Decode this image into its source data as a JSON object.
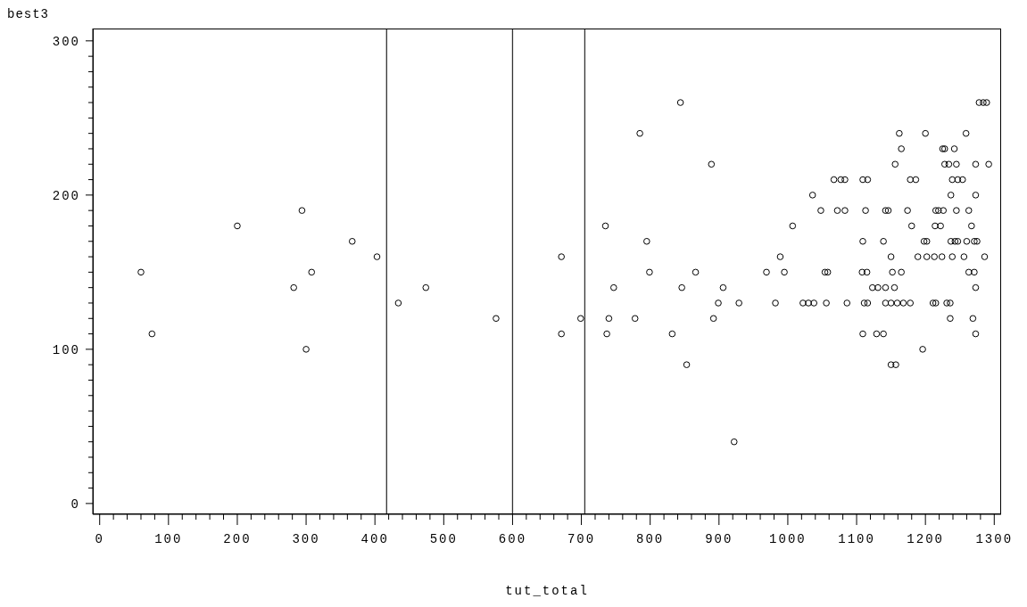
{
  "chart_data": {
    "type": "scatter",
    "xlabel": "tut_total",
    "ylabel": "best3",
    "x": [
      60,
      76,
      200,
      294,
      367,
      403,
      308,
      282,
      300,
      434,
      474,
      576,
      671,
      671,
      699,
      735,
      740,
      737,
      747,
      778,
      785,
      795,
      799,
      832,
      844,
      846,
      853,
      866,
      889,
      892,
      899,
      906,
      922,
      929,
      969,
      982,
      989,
      995,
      1007,
      1022,
      1030,
      1038,
      1036,
      1048,
      1054,
      1058,
      1056,
      1067,
      1077,
      1083,
      1109,
      1116,
      1178,
      1186,
      1239,
      1247,
      1254,
      1072,
      1083,
      1113,
      1142,
      1146,
      1174,
      1215,
      1219,
      1226,
      1245,
      1263,
      1086,
      1111,
      1116,
      1142,
      1150,
      1159,
      1168,
      1178,
      1211,
      1215,
      1231,
      1236,
      1278,
      1284,
      1289,
      1162,
      1200,
      1259,
      1165,
      1225,
      1228,
      1242,
      1156,
      1228,
      1234,
      1245,
      1273,
      1292,
      1237,
      1273,
      1180,
      1214,
      1222,
      1267,
      1109,
      1139,
      1198,
      1202,
      1237,
      1243,
      1247,
      1260,
      1271,
      1275,
      1150,
      1189,
      1202,
      1213,
      1224,
      1239,
      1256,
      1286,
      1108,
      1115,
      1152,
      1165,
      1263,
      1271,
      1123,
      1131,
      1142,
      1155,
      1273,
      1236,
      1269,
      1109,
      1129,
      1139,
      1273,
      1196,
      1150,
      1157
    ],
    "values": [
      150,
      110,
      180,
      190,
      170,
      160,
      150,
      140,
      100,
      130,
      140,
      120,
      160,
      110,
      120,
      180,
      120,
      110,
      140,
      120,
      240,
      170,
      150,
      110,
      260,
      140,
      90,
      150,
      220,
      120,
      130,
      140,
      40,
      130,
      150,
      130,
      160,
      150,
      180,
      130,
      130,
      130,
      200,
      190,
      150,
      150,
      130,
      210,
      210,
      210,
      210,
      210,
      210,
      210,
      210,
      210,
      210,
      190,
      190,
      190,
      190,
      190,
      190,
      190,
      190,
      190,
      190,
      190,
      130,
      130,
      130,
      130,
      130,
      130,
      130,
      130,
      130,
      130,
      130,
      130,
      260,
      260,
      260,
      240,
      240,
      240,
      230,
      230,
      230,
      230,
      220,
      220,
      220,
      220,
      220,
      220,
      200,
      200,
      180,
      180,
      180,
      180,
      170,
      170,
      170,
      170,
      170,
      170,
      170,
      170,
      170,
      170,
      160,
      160,
      160,
      160,
      160,
      160,
      160,
      160,
      150,
      150,
      150,
      150,
      150,
      150,
      140,
      140,
      140,
      140,
      140,
      120,
      120,
      110,
      110,
      110,
      110,
      100,
      90,
      90
    ],
    "color": "#000000",
    "marker": "circle",
    "grid": false,
    "legend": false,
    "xlim": [
      -10,
      1310
    ],
    "ylim": [
      -7,
      308
    ],
    "xticks": [
      0,
      {
        "value": 20,
        "label": null
      },
      {
        "value": 40,
        "label": null
      },
      {
        "value": 60,
        "label": null
      },
      {
        "value": 80,
        "label": null
      },
      100,
      {
        "value": 120,
        "label": null
      },
      {
        "value": 140,
        "label": null
      },
      {
        "value": 160,
        "label": null
      },
      {
        "value": 180,
        "label": null
      },
      200,
      {
        "value": 220,
        "label": null
      },
      {
        "value": 240,
        "label": null
      },
      {
        "value": 260,
        "label": null
      },
      {
        "value": 280,
        "label": null
      },
      300,
      {
        "value": 320,
        "label": null
      },
      {
        "value": 340,
        "label": null
      },
      {
        "value": 360,
        "label": null
      },
      {
        "value": 380,
        "label": null
      },
      400,
      {
        "value": 420,
        "label": null
      },
      {
        "value": 440,
        "label": null
      },
      {
        "value": 460,
        "label": null
      },
      {
        "value": 480,
        "label": null
      },
      500,
      {
        "value": 520,
        "label": null
      },
      {
        "value": 540,
        "label": null
      },
      {
        "value": 560,
        "label": null
      },
      {
        "value": 580,
        "label": null
      },
      600,
      {
        "value": 620,
        "label": null
      },
      {
        "value": 640,
        "label": null
      },
      {
        "value": 660,
        "label": null
      },
      {
        "value": 680,
        "label": null
      },
      700,
      {
        "value": 720,
        "label": null
      },
      {
        "value": 740,
        "label": null
      },
      {
        "value": 760,
        "label": null
      },
      {
        "value": 780,
        "label": null
      },
      800,
      {
        "value": 820,
        "label": null
      },
      {
        "value": 840,
        "label": null
      },
      {
        "value": 860,
        "label": null
      },
      {
        "value": 880,
        "label": null
      },
      900,
      {
        "value": 920,
        "label": null
      },
      {
        "value": 940,
        "label": null
      },
      {
        "value": 960,
        "label": null
      },
      {
        "value": 980,
        "label": null
      },
      1000,
      {
        "value": 1020,
        "label": null
      },
      {
        "value": 1040,
        "label": null
      },
      {
        "value": 1060,
        "label": null
      },
      {
        "value": 1080,
        "label": null
      },
      1100,
      {
        "value": 1120,
        "label": null
      },
      {
        "value": 1140,
        "label": null
      },
      {
        "value": 1160,
        "label": null
      },
      {
        "value": 1180,
        "label": null
      },
      1200,
      {
        "value": 1220,
        "label": null
      },
      {
        "value": 1240,
        "label": null
      },
      {
        "value": 1260,
        "label": null
      },
      {
        "value": 1280,
        "label": null
      },
      1300
    ],
    "yticks": [
      0,
      {
        "value": 10,
        "label": null
      },
      {
        "value": 20,
        "label": null
      },
      {
        "value": 30,
        "label": null
      },
      {
        "value": 40,
        "label": null
      },
      {
        "value": 50,
        "label": null
      },
      {
        "value": 60,
        "label": null
      },
      {
        "value": 70,
        "label": null
      },
      {
        "value": 80,
        "label": null
      },
      {
        "value": 90,
        "label": null
      },
      100,
      {
        "value": 110,
        "label": null
      },
      {
        "value": 120,
        "label": null
      },
      {
        "value": 130,
        "label": null
      },
      {
        "value": 140,
        "label": null
      },
      {
        "value": 150,
        "label": null
      },
      {
        "value": 160,
        "label": null
      },
      {
        "value": 170,
        "label": null
      },
      {
        "value": 180,
        "label": null
      },
      {
        "value": 190,
        "label": null
      },
      200,
      {
        "value": 210,
        "label": null
      },
      {
        "value": 220,
        "label": null
      },
      {
        "value": 230,
        "label": null
      },
      {
        "value": 240,
        "label": null
      },
      {
        "value": 250,
        "label": null
      },
      {
        "value": 260,
        "label": null
      },
      {
        "value": 270,
        "label": null
      },
      {
        "value": 280,
        "label": null
      },
      {
        "value": 290,
        "label": null
      },
      300
    ],
    "ref_lines": [
      {
        "axis": "x",
        "value": 417,
        "color": "#333333"
      },
      {
        "axis": "x",
        "value": 600,
        "color": "#333333"
      },
      {
        "axis": "x",
        "value": 705,
        "color": "#333333"
      }
    ]
  }
}
